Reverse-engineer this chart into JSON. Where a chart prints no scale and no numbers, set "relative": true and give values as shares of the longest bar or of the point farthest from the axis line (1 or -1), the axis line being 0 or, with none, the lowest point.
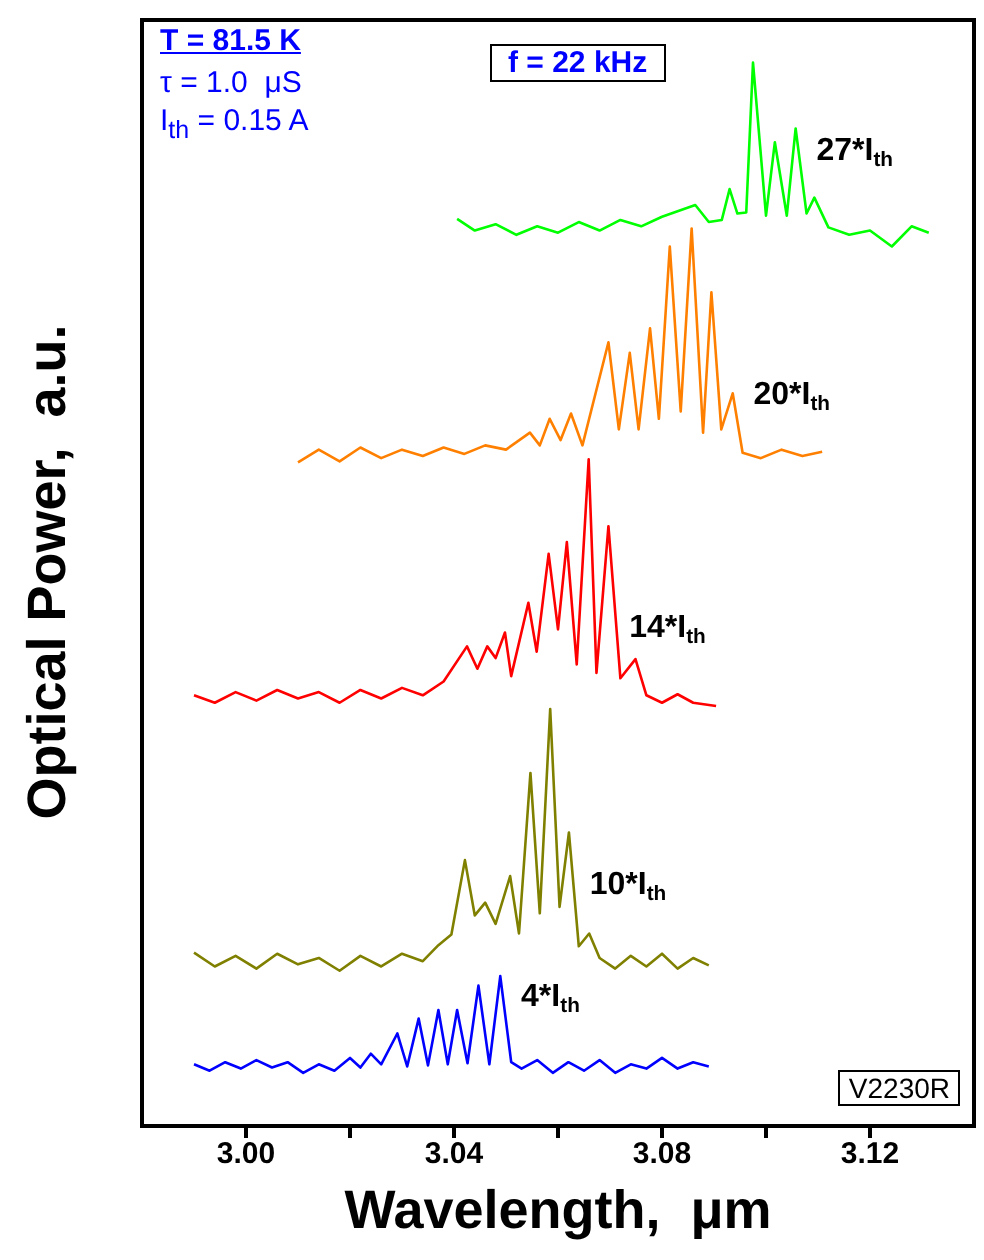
{
  "chart_data": {
    "type": "line",
    "relative": true,
    "xlabel": "Wavelength,  μm",
    "ylabel": "Optical Power,  a.u.",
    "xlim": [
      2.98,
      3.14
    ],
    "xticks": [
      {
        "value": 3.0,
        "label": "3.00"
      },
      {
        "value": 3.02,
        "label": null
      },
      {
        "value": 3.04,
        "label": "3.04"
      },
      {
        "value": 3.06,
        "label": null
      },
      {
        "value": 3.08,
        "label": "3.08"
      },
      {
        "value": 3.1,
        "label": null
      },
      {
        "value": 3.12,
        "label": "3.12"
      }
    ],
    "annotations": [
      "T = 81.5 K",
      "τ = 1.0  μS",
      "I$_{th}$ = 0.15 A",
      "f = 22 kHz",
      "V2230R"
    ],
    "series": [
      {
        "name": "4*I$_{th}$",
        "color": "#0000ff",
        "x": [
          2.99,
          2.993,
          2.996,
          2.999,
          3.002,
          3.005,
          3.008,
          3.011,
          3.014,
          3.017,
          3.02,
          3.022,
          3.024,
          3.026,
          3.0291,
          3.031,
          3.0332,
          3.035,
          3.037,
          3.0388,
          3.0406,
          3.0426,
          3.0447,
          3.0468,
          3.0489,
          3.051,
          3.053,
          3.056,
          3.059,
          3.062,
          3.065,
          3.068,
          3.071,
          3.074,
          3.077,
          3.08,
          3.083,
          3.086,
          3.089
        ],
        "values": [
          0.058,
          0.052,
          0.06,
          0.054,
          0.062,
          0.055,
          0.06,
          0.05,
          0.058,
          0.052,
          0.064,
          0.055,
          0.068,
          0.058,
          0.087,
          0.056,
          0.101,
          0.057,
          0.109,
          0.058,
          0.109,
          0.059,
          0.132,
          0.058,
          0.141,
          0.06,
          0.054,
          0.062,
          0.05,
          0.06,
          0.052,
          0.062,
          0.05,
          0.058,
          0.054,
          0.064,
          0.054,
          0.06,
          0.056
        ]
      },
      {
        "name": "10*I$_{th}$",
        "color": "#808000",
        "x": [
          2.99,
          2.994,
          2.998,
          3.002,
          3.006,
          3.01,
          3.014,
          3.018,
          3.022,
          3.026,
          3.03,
          3.034,
          3.037,
          3.0395,
          3.0421,
          3.044,
          3.046,
          3.048,
          3.0508,
          3.0525,
          3.0547,
          3.0565,
          3.0585,
          3.0603,
          3.0621,
          3.064,
          3.066,
          3.068,
          3.071,
          3.074,
          3.077,
          3.08,
          3.083,
          3.086,
          3.089
        ],
        "values": [
          0.163,
          0.15,
          0.16,
          0.148,
          0.162,
          0.152,
          0.158,
          0.146,
          0.16,
          0.15,
          0.162,
          0.155,
          0.17,
          0.18,
          0.25,
          0.198,
          0.21,
          0.19,
          0.235,
          0.181,
          0.332,
          0.2,
          0.392,
          0.206,
          0.276,
          0.169,
          0.181,
          0.158,
          0.148,
          0.16,
          0.15,
          0.162,
          0.148,
          0.158,
          0.151
        ]
      },
      {
        "name": "14*I$_{th}$",
        "color": "#ff0000",
        "x": [
          2.99,
          2.994,
          2.998,
          3.002,
          3.006,
          3.01,
          3.014,
          3.018,
          3.022,
          3.026,
          3.03,
          3.034,
          3.038,
          3.0425,
          3.0445,
          3.0464,
          3.048,
          3.0498,
          3.051,
          3.0543,
          3.0559,
          3.0582,
          3.06,
          3.0617,
          3.0636,
          3.0659,
          3.0674,
          3.0697,
          3.072,
          3.0749,
          3.077,
          3.08,
          3.083,
          3.086,
          3.0904
        ],
        "values": [
          0.405,
          0.398,
          0.408,
          0.4,
          0.41,
          0.402,
          0.408,
          0.398,
          0.41,
          0.402,
          0.412,
          0.405,
          0.418,
          0.451,
          0.43,
          0.451,
          0.44,
          0.464,
          0.423,
          0.492,
          0.446,
          0.538,
          0.467,
          0.549,
          0.434,
          0.627,
          0.426,
          0.564,
          0.421,
          0.439,
          0.405,
          0.398,
          0.406,
          0.398,
          0.395
        ]
      },
      {
        "name": "20*I$_{th}$",
        "color": "#ff8000",
        "x": [
          3.01,
          3.014,
          3.018,
          3.022,
          3.026,
          3.03,
          3.034,
          3.038,
          3.042,
          3.046,
          3.05,
          3.0546,
          3.0565,
          3.0584,
          3.0605,
          3.0625,
          3.0647,
          3.0697,
          3.0717,
          3.0738,
          3.0755,
          3.0777,
          3.0794,
          3.0815,
          3.0836,
          3.0857,
          3.0879,
          3.0895,
          3.0914,
          3.0936,
          3.0955,
          3.099,
          3.103,
          3.107,
          3.1108
        ],
        "values": [
          0.624,
          0.636,
          0.625,
          0.638,
          0.628,
          0.636,
          0.63,
          0.638,
          0.632,
          0.64,
          0.636,
          0.652,
          0.64,
          0.665,
          0.645,
          0.67,
          0.64,
          0.737,
          0.655,
          0.727,
          0.655,
          0.75,
          0.665,
          0.827,
          0.672,
          0.844,
          0.652,
          0.784,
          0.655,
          0.689,
          0.633,
          0.628,
          0.636,
          0.63,
          0.634
        ]
      },
      {
        "name": "27*I$_{th}$",
        "color": "#00ff00",
        "x": [
          3.0406,
          3.044,
          3.048,
          3.052,
          3.056,
          3.06,
          3.064,
          3.068,
          3.072,
          3.076,
          3.08,
          3.0864,
          3.089,
          3.0915,
          3.093,
          3.0945,
          3.0962,
          3.0975,
          3.1,
          3.1017,
          3.104,
          3.1057,
          3.1078,
          3.1093,
          3.112,
          3.116,
          3.12,
          3.1242,
          3.128,
          3.1313
        ],
        "values": [
          0.853,
          0.842,
          0.848,
          0.838,
          0.846,
          0.84,
          0.85,
          0.842,
          0.852,
          0.846,
          0.855,
          0.866,
          0.85,
          0.852,
          0.881,
          0.858,
          0.859,
          1,
          0.856,
          0.925,
          0.856,
          0.938,
          0.858,
          0.873,
          0.845,
          0.838,
          0.842,
          0.827,
          0.846,
          0.84
        ]
      }
    ]
  }
}
